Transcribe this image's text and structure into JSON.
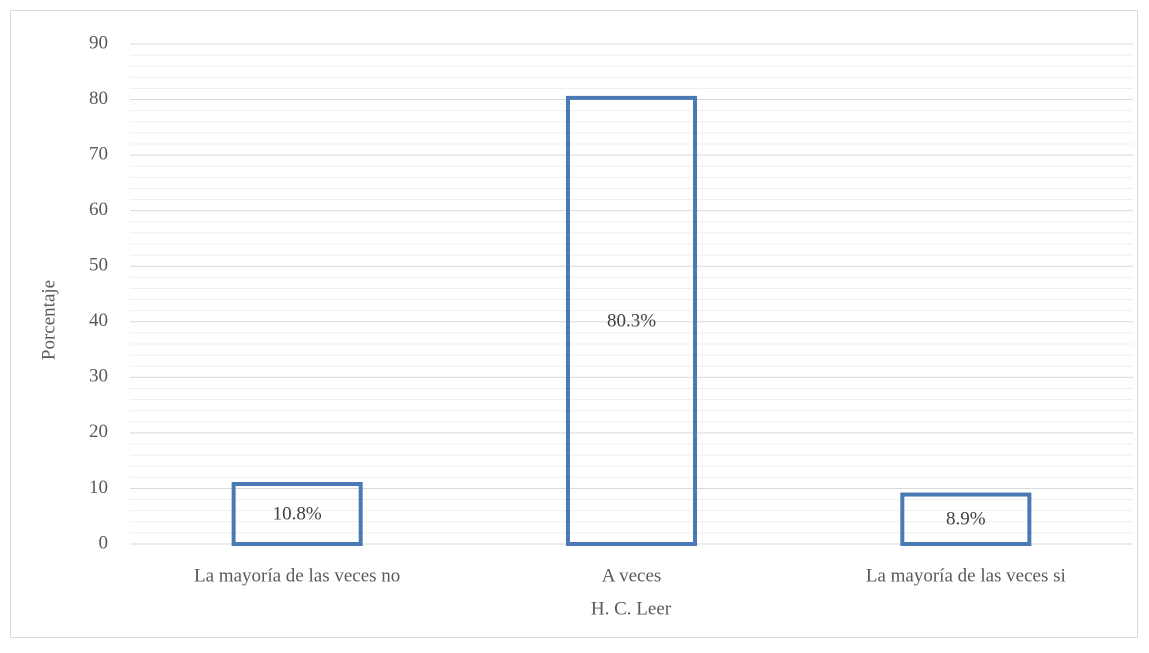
{
  "chart_data": {
    "type": "bar",
    "categories": [
      "La mayoría de las veces no",
      "A veces",
      "La mayoría de las veces si"
    ],
    "values": [
      10.8,
      80.3,
      8.9
    ],
    "value_labels": [
      "10.8%",
      "80.3%",
      "8.9%"
    ],
    "color": "#4a7ab5",
    "x_label": "H. C. Leer",
    "y_label": "Porcentaje",
    "ylim": [
      0,
      90
    ],
    "yticks": [
      0,
      10,
      20,
      30,
      40,
      50,
      60,
      70,
      80,
      90
    ],
    "minor_yticks": [
      2,
      4,
      6,
      8,
      12,
      14,
      16,
      18,
      22,
      24,
      26,
      28,
      32,
      34,
      36,
      38,
      42,
      44,
      46,
      48,
      52,
      54,
      56,
      58,
      62,
      64,
      66,
      68,
      72,
      74,
      76,
      78,
      82,
      84,
      86,
      88
    ],
    "grid": true
  }
}
